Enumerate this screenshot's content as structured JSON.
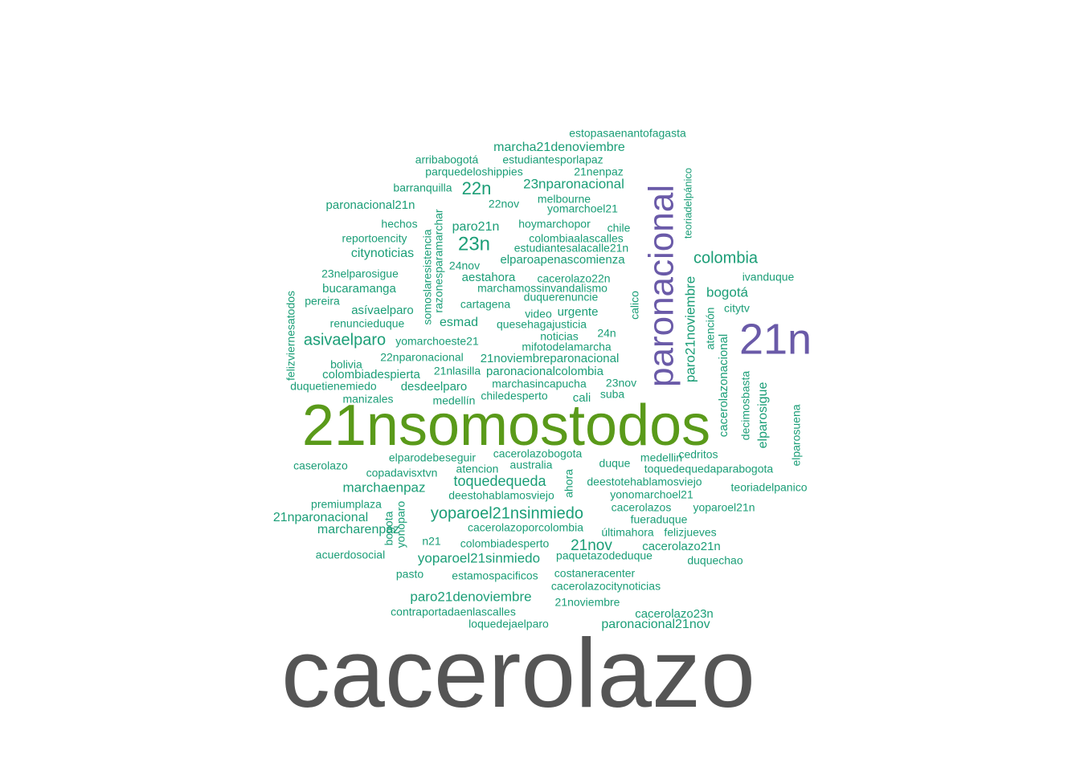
{
  "palette": {
    "teal": "#1b9e77",
    "purple": "#6a5aa8",
    "green": "#5a9a1a",
    "gray": "#555555"
  },
  "words": [
    {
      "text": "cacerolazo",
      "color": "gray"
    },
    {
      "text": "21nsomostodos",
      "color": "green"
    },
    {
      "text": "paronacional",
      "color": "purple"
    },
    {
      "text": "21n",
      "color": "purple"
    },
    {
      "text": "estopasaenantofagasta",
      "color": "teal"
    },
    {
      "text": "marcha21denoviembre",
      "color": "teal"
    },
    {
      "text": "arribabogotá",
      "color": "teal"
    },
    {
      "text": "estudiantesporlapaz",
      "color": "teal"
    },
    {
      "text": "parquedeloshippies",
      "color": "teal"
    },
    {
      "text": "21nenpaz",
      "color": "teal"
    },
    {
      "text": "barranquilla",
      "color": "teal"
    },
    {
      "text": "22n",
      "color": "teal"
    },
    {
      "text": "23nparonacional",
      "color": "teal"
    },
    {
      "text": "melbourne",
      "color": "teal"
    },
    {
      "text": "paronacional21n",
      "color": "teal"
    },
    {
      "text": "22nov",
      "color": "teal"
    },
    {
      "text": "yomarchoel21",
      "color": "teal"
    },
    {
      "text": "hechos",
      "color": "teal"
    },
    {
      "text": "paro21n",
      "color": "teal"
    },
    {
      "text": "hoymarchopor",
      "color": "teal"
    },
    {
      "text": "chile",
      "color": "teal"
    },
    {
      "text": "reportoencity",
      "color": "teal"
    },
    {
      "text": "23n",
      "color": "teal"
    },
    {
      "text": "colombiaalascalles",
      "color": "teal"
    },
    {
      "text": "citynoticias",
      "color": "teal"
    },
    {
      "text": "estudiantesalacalle21n",
      "color": "teal"
    },
    {
      "text": "colombia",
      "color": "teal"
    },
    {
      "text": "elparoapenascomienza",
      "color": "teal"
    },
    {
      "text": "24nov",
      "color": "teal"
    },
    {
      "text": "23nelparosigue",
      "color": "teal"
    },
    {
      "text": "aestahora",
      "color": "teal"
    },
    {
      "text": "cacerolazo22n",
      "color": "teal"
    },
    {
      "text": "ivanduque",
      "color": "teal"
    },
    {
      "text": "bucaramanga",
      "color": "teal"
    },
    {
      "text": "marchamossinvandalismo",
      "color": "teal"
    },
    {
      "text": "bogotá",
      "color": "teal"
    },
    {
      "text": "duquerenuncie",
      "color": "teal"
    },
    {
      "text": "pereira",
      "color": "teal"
    },
    {
      "text": "cartagena",
      "color": "teal"
    },
    {
      "text": "citytv",
      "color": "teal"
    },
    {
      "text": "asívaelparo",
      "color": "teal"
    },
    {
      "text": "urgente",
      "color": "teal"
    },
    {
      "text": "video",
      "color": "teal"
    },
    {
      "text": "renuncieduque",
      "color": "teal"
    },
    {
      "text": "esmad",
      "color": "teal"
    },
    {
      "text": "quesehagajusticia",
      "color": "teal"
    },
    {
      "text": "24n",
      "color": "teal"
    },
    {
      "text": "noticias",
      "color": "teal"
    },
    {
      "text": "asivaelparo",
      "color": "teal"
    },
    {
      "text": "yomarchoeste21",
      "color": "teal"
    },
    {
      "text": "mifotodelamarcha",
      "color": "teal"
    },
    {
      "text": "22nparonacional",
      "color": "teal"
    },
    {
      "text": "21noviembreparonacional",
      "color": "teal"
    },
    {
      "text": "bolivia",
      "color": "teal"
    },
    {
      "text": "colombiadespierta",
      "color": "teal"
    },
    {
      "text": "21nlasilla",
      "color": "teal"
    },
    {
      "text": "paronacionalcolombia",
      "color": "teal"
    },
    {
      "text": "marchasincapucha",
      "color": "teal"
    },
    {
      "text": "23nov",
      "color": "teal"
    },
    {
      "text": "duquetienemiedo",
      "color": "teal"
    },
    {
      "text": "desdeelparo",
      "color": "teal"
    },
    {
      "text": "suba",
      "color": "teal"
    },
    {
      "text": "chiledesperto",
      "color": "teal"
    },
    {
      "text": "cali",
      "color": "teal"
    },
    {
      "text": "manizales",
      "color": "teal"
    },
    {
      "text": "medellín",
      "color": "teal"
    },
    {
      "text": "cacerolazobogota",
      "color": "teal"
    },
    {
      "text": "elparodebeseguir",
      "color": "teal"
    },
    {
      "text": "medellin",
      "color": "teal"
    },
    {
      "text": "cedritos",
      "color": "teal"
    },
    {
      "text": "caserolazo",
      "color": "teal"
    },
    {
      "text": "australia",
      "color": "teal"
    },
    {
      "text": "duque",
      "color": "teal"
    },
    {
      "text": "atencion",
      "color": "teal"
    },
    {
      "text": "toquedequedaparabogota",
      "color": "teal"
    },
    {
      "text": "copadavisxtvn",
      "color": "teal"
    },
    {
      "text": "toquedequeda",
      "color": "teal"
    },
    {
      "text": "deestotehablamosviejo",
      "color": "teal"
    },
    {
      "text": "marchaenpaz",
      "color": "teal"
    },
    {
      "text": "teoriadelpanico",
      "color": "teal"
    },
    {
      "text": "deestohablamosviejo",
      "color": "teal"
    },
    {
      "text": "yonomarchoel21",
      "color": "teal"
    },
    {
      "text": "premiumplaza",
      "color": "teal"
    },
    {
      "text": "cacerolazos",
      "color": "teal"
    },
    {
      "text": "yoparoel21n",
      "color": "teal"
    },
    {
      "text": "yoparoel21nsinmiedo",
      "color": "teal"
    },
    {
      "text": "21nparonacional",
      "color": "teal"
    },
    {
      "text": "fueraduque",
      "color": "teal"
    },
    {
      "text": "marcharenpaz",
      "color": "teal"
    },
    {
      "text": "cacerolazoporcolombia",
      "color": "teal"
    },
    {
      "text": "últimahora",
      "color": "teal"
    },
    {
      "text": "felizjueves",
      "color": "teal"
    },
    {
      "text": "n21",
      "color": "teal"
    },
    {
      "text": "colombiadesperto",
      "color": "teal"
    },
    {
      "text": "21nov",
      "color": "teal"
    },
    {
      "text": "cacerolazo21n",
      "color": "teal"
    },
    {
      "text": "acuerdosocial",
      "color": "teal"
    },
    {
      "text": "yoparoel21sinmiedo",
      "color": "teal"
    },
    {
      "text": "paquetazodeduque",
      "color": "teal"
    },
    {
      "text": "duquechao",
      "color": "teal"
    },
    {
      "text": "pasto",
      "color": "teal"
    },
    {
      "text": "estamospacificos",
      "color": "teal"
    },
    {
      "text": "costaneracenter",
      "color": "teal"
    },
    {
      "text": "cacerolazocitynoticias",
      "color": "teal"
    },
    {
      "text": "paro21denoviembre",
      "color": "teal"
    },
    {
      "text": "21noviembre",
      "color": "teal"
    },
    {
      "text": "contraportadaenlascalles",
      "color": "teal"
    },
    {
      "text": "cacerolazo23n",
      "color": "teal"
    },
    {
      "text": "loquedejaelparo",
      "color": "teal"
    },
    {
      "text": "paronacional21nov",
      "color": "teal"
    },
    {
      "text": "felizviernesatodos",
      "color": "teal"
    },
    {
      "text": "somoslaresistencia",
      "color": "teal"
    },
    {
      "text": "razonesparamarchar",
      "color": "teal"
    },
    {
      "text": "calico",
      "color": "teal"
    },
    {
      "text": "paro21noviembre",
      "color": "teal"
    },
    {
      "text": "teoriadelpánico",
      "color": "teal"
    },
    {
      "text": "atención",
      "color": "teal"
    },
    {
      "text": "cacerolazonacional",
      "color": "teal"
    },
    {
      "text": "decimosbasta",
      "color": "teal"
    },
    {
      "text": "elparosigue",
      "color": "teal"
    },
    {
      "text": "elparosuena",
      "color": "teal"
    },
    {
      "text": "ahora",
      "color": "teal"
    },
    {
      "text": "bogota",
      "color": "teal"
    },
    {
      "text": "yonoparo",
      "color": "teal"
    }
  ]
}
